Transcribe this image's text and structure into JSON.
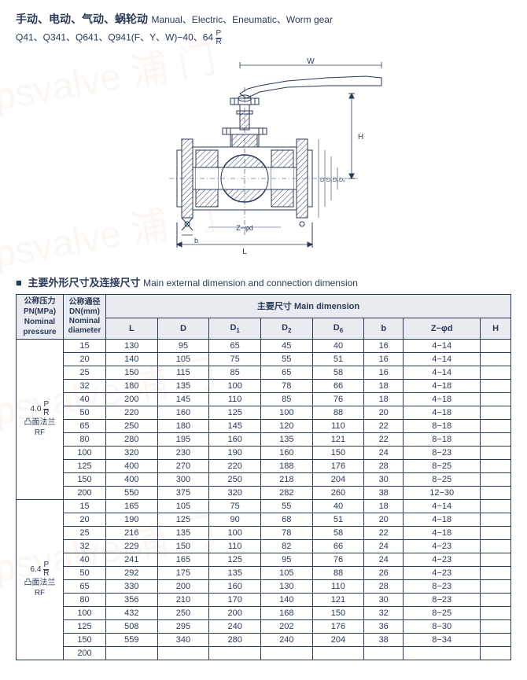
{
  "header": {
    "cn": "手动、电动、气动、蜗轮动",
    "en": "Manual、Electric、Eneumatic、Worm gear",
    "model": "Q41、Q341、Q641、Q941(F、Y、W)−40、64",
    "frac_n": "P",
    "frac_d": "R"
  },
  "section": {
    "cn": "主要外形尺寸及连接尺寸",
    "en": "Main external dimension and connection dimension"
  },
  "table": {
    "headers": {
      "pressure": "公称压力<br>PN(MPa)<br>Nominal<br>pressure",
      "diameter": "公称通径<br>DN(mm)<br>Nominal<br>diameter",
      "main": "主要尺寸 Main dimension",
      "cols": [
        "L",
        "D",
        "D₁",
        "D₂",
        "D₆",
        "b",
        "Z−φd",
        "H"
      ]
    },
    "groups": [
      {
        "pressure_html": "4.0 <span class='frac'><span class='n'>P</span><span class='d'>R</span></span><br>凸面法兰<br>RF",
        "rows": [
          [
            "15",
            "130",
            "95",
            "65",
            "45",
            "40",
            "16",
            "4−14",
            ""
          ],
          [
            "20",
            "140",
            "105",
            "75",
            "55",
            "51",
            "16",
            "4−14",
            ""
          ],
          [
            "25",
            "150",
            "115",
            "85",
            "65",
            "58",
            "16",
            "4−14",
            ""
          ],
          [
            "32",
            "180",
            "135",
            "100",
            "78",
            "66",
            "18",
            "4−18",
            ""
          ],
          [
            "40",
            "200",
            "145",
            "110",
            "85",
            "76",
            "18",
            "4−18",
            ""
          ],
          [
            "50",
            "220",
            "160",
            "125",
            "100",
            "88",
            "20",
            "4−18",
            ""
          ],
          [
            "65",
            "250",
            "180",
            "145",
            "120",
            "110",
            "22",
            "8−18",
            ""
          ],
          [
            "80",
            "280",
            "195",
            "160",
            "135",
            "121",
            "22",
            "8−18",
            ""
          ],
          [
            "100",
            "320",
            "230",
            "190",
            "160",
            "150",
            "24",
            "8−23",
            ""
          ],
          [
            "125",
            "400",
            "270",
            "220",
            "188",
            "176",
            "28",
            "8−25",
            ""
          ],
          [
            "150",
            "400",
            "300",
            "250",
            "218",
            "204",
            "30",
            "8−25",
            ""
          ],
          [
            "200",
            "550",
            "375",
            "320",
            "282",
            "260",
            "38",
            "12−30",
            ""
          ]
        ]
      },
      {
        "pressure_html": "6.4 <span class='frac'><span class='n'>P</span><span class='d'>R</span></span><br>凸面法兰<br>RF",
        "rows": [
          [
            "15",
            "165",
            "105",
            "75",
            "55",
            "40",
            "18",
            "4−14",
            ""
          ],
          [
            "20",
            "190",
            "125",
            "90",
            "68",
            "51",
            "20",
            "4−18",
            ""
          ],
          [
            "25",
            "216",
            "135",
            "100",
            "78",
            "58",
            "22",
            "4−18",
            ""
          ],
          [
            "32",
            "229",
            "150",
            "110",
            "82",
            "66",
            "24",
            "4−23",
            ""
          ],
          [
            "40",
            "241",
            "165",
            "125",
            "95",
            "76",
            "24",
            "4−23",
            ""
          ],
          [
            "50",
            "292",
            "175",
            "135",
            "105",
            "88",
            "26",
            "4−23",
            ""
          ],
          [
            "65",
            "330",
            "200",
            "160",
            "130",
            "110",
            "28",
            "8−23",
            ""
          ],
          [
            "80",
            "356",
            "210",
            "170",
            "140",
            "121",
            "30",
            "8−23",
            ""
          ],
          [
            "100",
            "432",
            "250",
            "200",
            "168",
            "150",
            "32",
            "8−25",
            ""
          ],
          [
            "125",
            "508",
            "295",
            "240",
            "202",
            "176",
            "36",
            "8−30",
            ""
          ],
          [
            "150",
            "559",
            "340",
            "280",
            "240",
            "204",
            "38",
            "8−34",
            ""
          ],
          [
            "200",
            "",
            "",
            "",
            "",
            "",
            "",
            "",
            ""
          ]
        ]
      }
    ]
  },
  "diagram": {
    "labels": {
      "W": "W",
      "H": "H",
      "L": "L",
      "b": "b",
      "Zphid": "Z−φd"
    },
    "colors": {
      "line": "#2a3a5a",
      "hatch": "#2a3a5a"
    }
  }
}
